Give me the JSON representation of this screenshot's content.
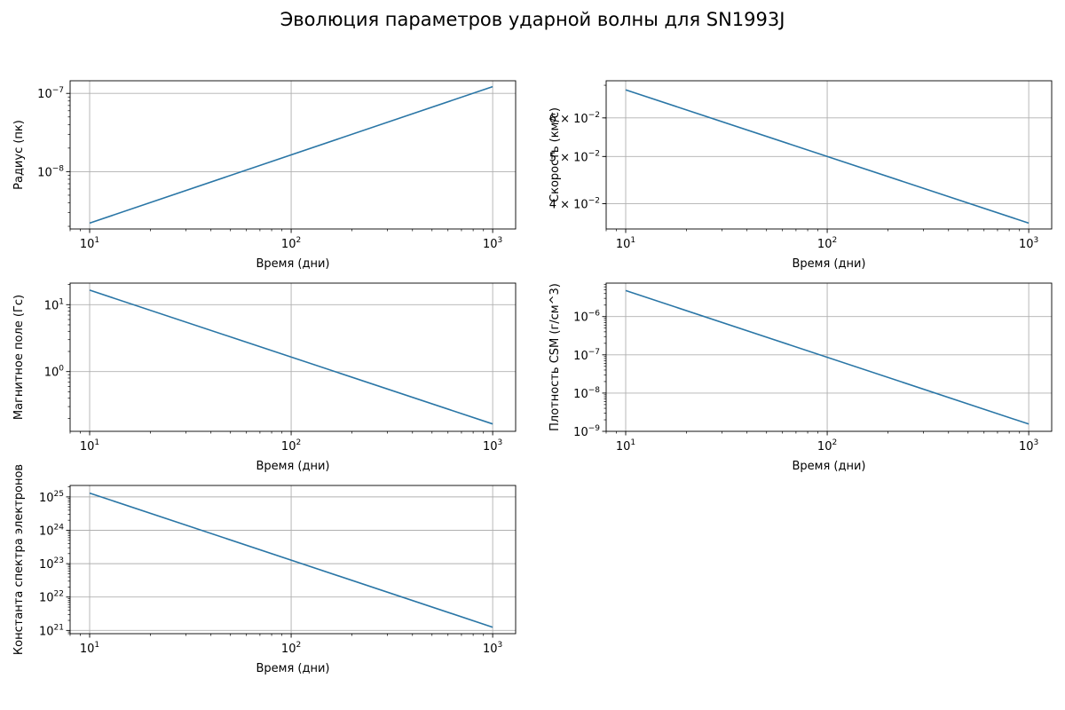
{
  "suptitle": "Эволюция параметров ударной волны для SN1993J",
  "colors": {
    "line": "#2a76a6",
    "grid": "#b0b0b0",
    "axis": "#000000"
  },
  "chart_data": [
    {
      "type": "line",
      "xlabel": "Время (дни)",
      "ylabel": "Радиус (пк)",
      "xscale": "log",
      "yscale": "log",
      "xlim": [
        8,
        1300
      ],
      "ylim": [
        1.85e-09,
        1.45e-07
      ],
      "grid": true,
      "x": [
        10,
        1000
      ],
      "y": [
        2.2e-09,
        1.22e-07
      ],
      "xticks": [
        {
          "v": 10,
          "m": "10",
          "e": "1"
        },
        {
          "v": 100,
          "m": "10",
          "e": "2"
        },
        {
          "v": 1000,
          "m": "10",
          "e": "3"
        }
      ],
      "yticks": [
        {
          "v": 1e-08,
          "m": "10",
          "e": "−8"
        },
        {
          "v": 1e-07,
          "m": "10",
          "e": "−7"
        }
      ]
    },
    {
      "type": "line",
      "xlabel": "Время (дни)",
      "ylabel": "Скорость (км/с)",
      "xscale": "log",
      "yscale": "log",
      "xlim": [
        8,
        1300
      ],
      "ylim": [
        0.0355,
        0.0715
      ],
      "grid": true,
      "x": [
        10,
        1000
      ],
      "y": [
        0.0685,
        0.0365
      ],
      "xticks": [
        {
          "v": 10,
          "m": "10",
          "e": "1"
        },
        {
          "v": 100,
          "m": "10",
          "e": "2"
        },
        {
          "v": 1000,
          "m": "10",
          "e": "3"
        }
      ],
      "yticks": [
        {
          "v": 0.04,
          "m": "4 × 10",
          "e": "−2"
        },
        {
          "v": 0.05,
          "m": "5 × 10",
          "e": "−2"
        },
        {
          "v": 0.06,
          "m": "6 × 10",
          "e": "−2"
        }
      ]
    },
    {
      "type": "line",
      "xlabel": "Время (дни)",
      "ylabel": "Магнитное поле (Гс)",
      "xscale": "log",
      "yscale": "log",
      "xlim": [
        8,
        1300
      ],
      "ylim": [
        0.128,
        21
      ],
      "grid": true,
      "x": [
        10,
        1000
      ],
      "y": [
        16.5,
        0.165
      ],
      "xticks": [
        {
          "v": 10,
          "m": "10",
          "e": "1"
        },
        {
          "v": 100,
          "m": "10",
          "e": "2"
        },
        {
          "v": 1000,
          "m": "10",
          "e": "3"
        }
      ],
      "yticks": [
        {
          "v": 1,
          "m": "10",
          "e": "0"
        },
        {
          "v": 10,
          "m": "10",
          "e": "1"
        }
      ]
    },
    {
      "type": "line",
      "xlabel": "Время (дни)",
      "ylabel": "Плотность CSM (г/см^3)",
      "xscale": "log",
      "yscale": "log",
      "xlim": [
        8,
        1300
      ],
      "ylim": [
        1e-09,
        7.5e-06
      ],
      "grid": true,
      "x": [
        10,
        1000
      ],
      "y": [
        4.8e-06,
        1.55e-09
      ],
      "xticks": [
        {
          "v": 10,
          "m": "10",
          "e": "1"
        },
        {
          "v": 100,
          "m": "10",
          "e": "2"
        },
        {
          "v": 1000,
          "m": "10",
          "e": "3"
        }
      ],
      "yticks": [
        {
          "v": 1e-09,
          "m": "10",
          "e": "−9"
        },
        {
          "v": 1e-08,
          "m": "10",
          "e": "−8"
        },
        {
          "v": 1e-07,
          "m": "10",
          "e": "−7"
        },
        {
          "v": 1e-06,
          "m": "10",
          "e": "−6"
        }
      ]
    },
    {
      "type": "line",
      "xlabel": "Время (дни)",
      "ylabel": "Константа спектра электронов",
      "xscale": "log",
      "yscale": "log",
      "xlim": [
        8,
        1300
      ],
      "ylim": [
        8e+20,
        2.2e+25
      ],
      "grid": true,
      "x": [
        10,
        1000
      ],
      "y": [
        1.3e+25,
        1.25e+21
      ],
      "xticks": [
        {
          "v": 10,
          "m": "10",
          "e": "1"
        },
        {
          "v": 100,
          "m": "10",
          "e": "2"
        },
        {
          "v": 1000,
          "m": "10",
          "e": "3"
        }
      ],
      "yticks": [
        {
          "v": 1e+21,
          "m": "10",
          "e": "21"
        },
        {
          "v": 1e+22,
          "m": "10",
          "e": "22"
        },
        {
          "v": 1e+23,
          "m": "10",
          "e": "23"
        },
        {
          "v": 1e+24,
          "m": "10",
          "e": "24"
        },
        {
          "v": 1e+25,
          "m": "10",
          "e": "25"
        }
      ]
    }
  ]
}
